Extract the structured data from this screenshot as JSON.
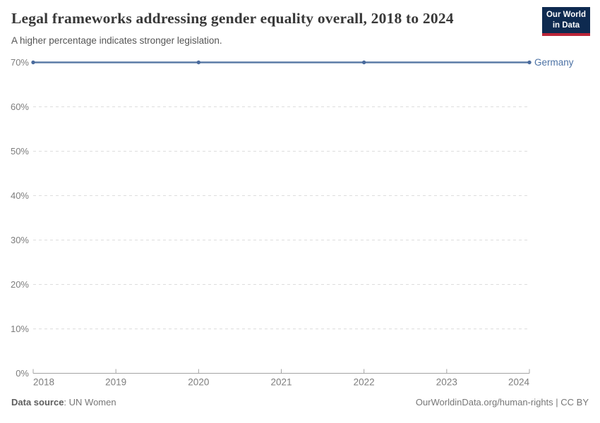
{
  "header": {
    "title": "Legal frameworks addressing gender equality overall, 2018 to 2024",
    "subtitle": "A higher percentage indicates stronger legislation.",
    "logo": {
      "line1": "Our World",
      "line2": "in Data",
      "bg_color": "#0e2a50",
      "stripe_color": "#bb2538"
    }
  },
  "chart_data": {
    "type": "line",
    "title": "Legal frameworks addressing gender equality overall, 2018 to 2024",
    "xlabel": "",
    "ylabel": "",
    "unit": "%",
    "x": [
      2018,
      2020,
      2022,
      2024
    ],
    "series": [
      {
        "name": "Germany",
        "values": [
          70,
          70,
          70,
          70
        ],
        "color": "#5b7ba6",
        "marker_color": "#4a6b9d",
        "label_color": "#4c72a5"
      }
    ],
    "xticks": [
      2018,
      2019,
      2020,
      2021,
      2022,
      2023,
      2024
    ],
    "yticks": [
      0,
      10,
      20,
      30,
      40,
      50,
      60,
      70
    ],
    "xlim": [
      2018,
      2024
    ],
    "ylim": [
      0,
      70
    ],
    "grid": "horizontal-dashed",
    "legend_position": "end-of-line",
    "axis_color": "#a3a3a3",
    "grid_color": "#dddddd",
    "tick_label_color": "#7d7d7d"
  },
  "footer": {
    "source_label": "Data source",
    "separator": ": ",
    "source_value": "UN Women",
    "right_text": "OurWorldinData.org/human-rights | CC BY"
  }
}
